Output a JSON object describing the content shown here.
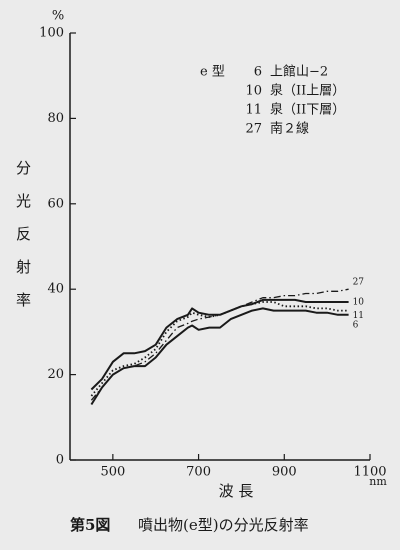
{
  "chart_data": {
    "type": "line",
    "y_unit": "%",
    "y_label": "分光反射率",
    "x_label": "波 長",
    "x_unit": "nm",
    "caption_number": "第5図",
    "caption": "噴出物(e型)の分光反射率",
    "legend_title": "e 型",
    "legend_position": "upper right",
    "xlim": [
      400,
      1100
    ],
    "ylim": [
      0,
      100
    ],
    "xticks": [
      500,
      700,
      900,
      1100
    ],
    "yticks": [
      0,
      20,
      40,
      60,
      80,
      100
    ],
    "x": [
      450,
      475,
      500,
      525,
      550,
      575,
      600,
      625,
      650,
      675,
      685,
      700,
      725,
      750,
      775,
      800,
      825,
      850,
      875,
      900,
      925,
      950,
      975,
      1000,
      1025,
      1050
    ],
    "series": [
      {
        "name": "6",
        "description": "上館山−2",
        "color": "#1a1a1a",
        "style": "solid",
        "values": [
          13,
          17,
          20,
          21.5,
          22,
          22,
          24,
          27,
          29,
          31,
          31.5,
          30.5,
          31,
          31,
          33,
          34,
          35,
          35.5,
          35,
          35,
          35,
          35,
          34.5,
          34.5,
          34,
          34
        ]
      },
      {
        "name": "10",
        "description": "泉（II上層）",
        "color": "#1a1a1a",
        "style": "solid",
        "values": [
          16.5,
          19,
          23,
          25,
          25,
          25.5,
          27,
          31,
          33,
          34,
          35.5,
          34.5,
          34,
          34,
          35,
          36,
          36.5,
          37.5,
          37.5,
          37.5,
          37.5,
          37,
          37,
          37,
          37,
          37
        ]
      },
      {
        "name": "11",
        "description": "泉（II下層）",
        "color": "#1a1a1a",
        "style": "dotted",
        "values": [
          15,
          18,
          21,
          22,
          22.5,
          24,
          26,
          30,
          32.5,
          33.5,
          34.5,
          34,
          33.5,
          34,
          35,
          36,
          36.5,
          37,
          37,
          36,
          36,
          36,
          35.5,
          35.5,
          35,
          35
        ]
      },
      {
        "name": "27",
        "description": "南２線",
        "color": "#1a1a1a",
        "style": "dash-dot",
        "values": [
          14,
          17,
          20,
          21.5,
          22,
          23,
          25,
          28,
          31,
          32,
          32.5,
          33,
          33.5,
          34,
          35,
          36,
          37,
          38,
          38,
          38.5,
          38.5,
          39,
          39,
          39.5,
          39.5,
          40
        ]
      }
    ]
  }
}
